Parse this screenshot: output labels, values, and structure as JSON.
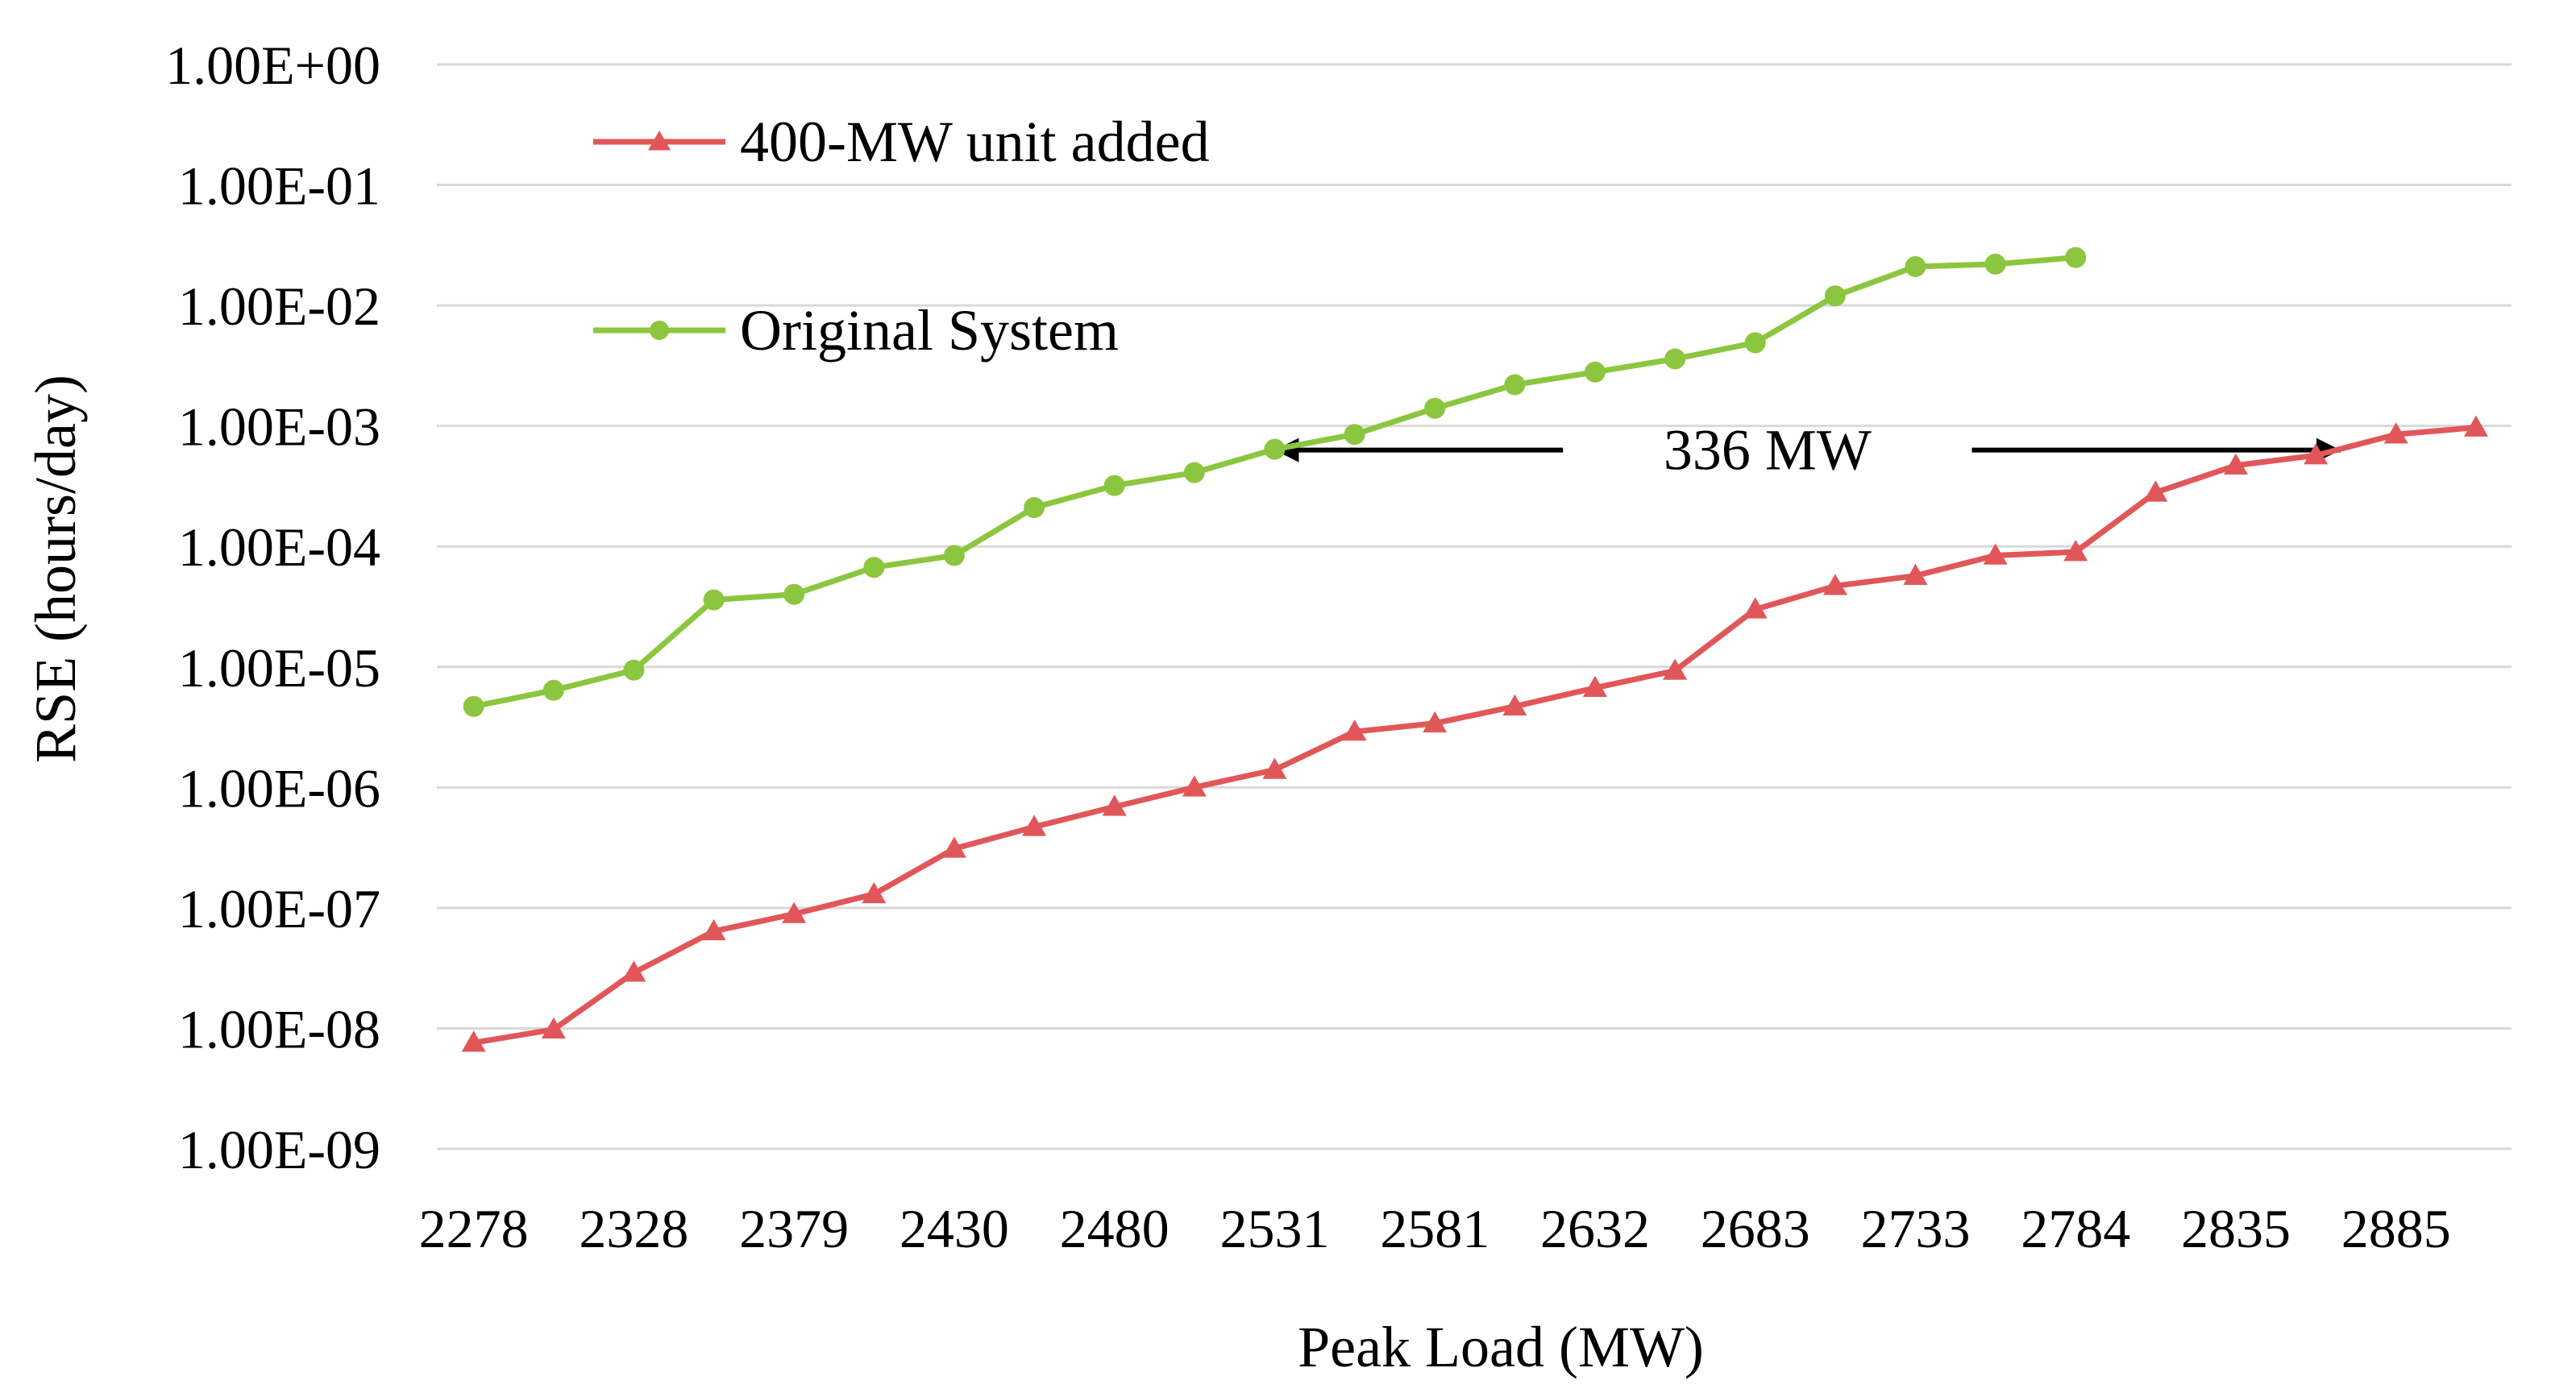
{
  "chart_data": {
    "type": "line",
    "title": "",
    "xlabel": "Peak Load (MW)",
    "ylabel": "RSE (hours/day)",
    "y_scale": "log10",
    "ylim": [
      1e-09,
      1
    ],
    "y_ticks": [
      1e-09,
      1e-08,
      1e-07,
      1e-06,
      1e-05,
      0.0001,
      0.001,
      0.01,
      0.1,
      1
    ],
    "y_tick_labels": [
      "1.00E-09",
      "1.00E-08",
      "1.00E-07",
      "1.00E-06",
      "1.00E-05",
      "1.00E-04",
      "1.00E-03",
      "1.00E-02",
      "1.00E-01",
      "1.00E+00"
    ],
    "xlim": [
      2266.4,
      2920.4
    ],
    "x_tick_labels": [
      "2278",
      "2328",
      "2379",
      "2430",
      "2480",
      "2531",
      "2581",
      "2632",
      "2683",
      "2733",
      "2784",
      "2835",
      "2885"
    ],
    "grid": true,
    "legend_position": "top-left",
    "series": [
      {
        "name": "400-MW unit added",
        "color": "#e15759",
        "marker": "triangle",
        "x": [
          2278,
          2303.2,
          2328.5,
          2353.7,
          2379,
          2404.2,
          2429.5,
          2454.7,
          2480,
          2505.2,
          2530.5,
          2555.7,
          2581,
          2606.2,
          2631.5,
          2656.7,
          2682,
          2707.2,
          2732.5,
          2757.7,
          2783,
          2808.2,
          2833.5,
          2858.7,
          2884,
          2909.2
        ],
        "values": [
          7.6e-09,
          9.8e-09,
          2.9e-08,
          6.4e-08,
          8.9e-08,
          1.3e-07,
          3.1e-07,
          4.7e-07,
          6.9e-07,
          1e-06,
          1.4e-06,
          2.9e-06,
          3.4e-06,
          4.7e-06,
          6.7e-06,
          9.3e-06,
          3e-05,
          4.7e-05,
          5.7e-05,
          8.4e-05,
          9e-05,
          0.00028,
          0.00047,
          0.00057,
          0.00085,
          0.00097
        ]
      },
      {
        "name": "Original System",
        "color": "#8cc63f",
        "marker": "circle",
        "x": [
          2278,
          2303.2,
          2328.5,
          2353.7,
          2379,
          2404.2,
          2429.5,
          2454.7,
          2480,
          2505.2,
          2530.5,
          2555.7,
          2581,
          2606.2,
          2631.5,
          2656.7,
          2682,
          2707.2,
          2732.5,
          2757.7,
          2783
        ],
        "values": [
          4.7e-06,
          6.4e-06,
          9.4e-06,
          3.6e-05,
          4e-05,
          6.7e-05,
          8.4e-05,
          0.00021,
          0.00032,
          0.00041,
          0.00064,
          0.00085,
          0.0014,
          0.0022,
          0.0028,
          0.0036,
          0.0049,
          0.012,
          0.021,
          0.022,
          0.025
        ]
      }
    ],
    "annotations": [
      {
        "text": "336 MW",
        "y_value": 0.00063,
        "arrow_left_to_x": 2530.5,
        "arrow_right_to_x": 2866.5,
        "line_left_end_x": 2621.4,
        "line_right_start_x": 2750.3
      }
    ]
  }
}
